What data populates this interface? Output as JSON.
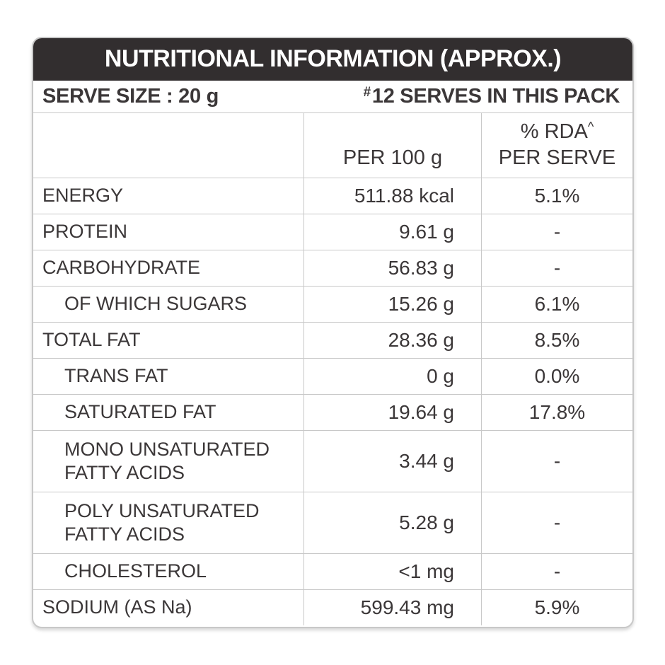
{
  "colors": {
    "header-bg": "#322e2f",
    "header-text": "#ffffff",
    "body-text": "#3b3738",
    "border": "#c8c8c8"
  },
  "title_bar": {
    "title": "NUTRITIONAL INFORMATION (APPROX.)"
  },
  "serve_bar": {
    "serve_size": "SERVE SIZE : 20 g",
    "serves_superscript": "#",
    "serves_in_pack": "12 SERVES IN THIS PACK"
  },
  "column_headers": {
    "per_100g": "PER 100 g",
    "rda_label": "% RDA",
    "rda_superscript": "^",
    "rda_sub": "PER SERVE"
  },
  "rows": [
    {
      "label": "ENERGY",
      "indent": false,
      "value": "511.88 kcal",
      "rda": "5.1%"
    },
    {
      "label": "PROTEIN",
      "indent": false,
      "value": "9.61 g",
      "rda": "-"
    },
    {
      "label": "CARBOHYDRATE",
      "indent": false,
      "value": "56.83 g",
      "rda": "-"
    },
    {
      "label": "OF WHICH SUGARS",
      "indent": true,
      "value": "15.26 g",
      "rda": "6.1%"
    },
    {
      "label": "TOTAL FAT",
      "indent": false,
      "value": "28.36 g",
      "rda": "8.5%"
    },
    {
      "label": "TRANS FAT",
      "indent": true,
      "value": "0 g",
      "rda": "0.0%"
    },
    {
      "label": "SATURATED FAT",
      "indent": true,
      "value": "19.64 g",
      "rda": "17.8%"
    },
    {
      "label": "MONO UNSATURATED FATTY ACIDS",
      "indent": true,
      "value": "3.44 g",
      "rda": "-"
    },
    {
      "label": "POLY UNSATURATED FATTY ACIDS",
      "indent": true,
      "value": "5.28 g",
      "rda": "-"
    },
    {
      "label": "CHOLESTEROL",
      "indent": true,
      "value": "<1 mg",
      "rda": "-"
    },
    {
      "label": "SODIUM (AS Na)",
      "indent": false,
      "value": "599.43 mg",
      "rda": "5.9%"
    }
  ]
}
